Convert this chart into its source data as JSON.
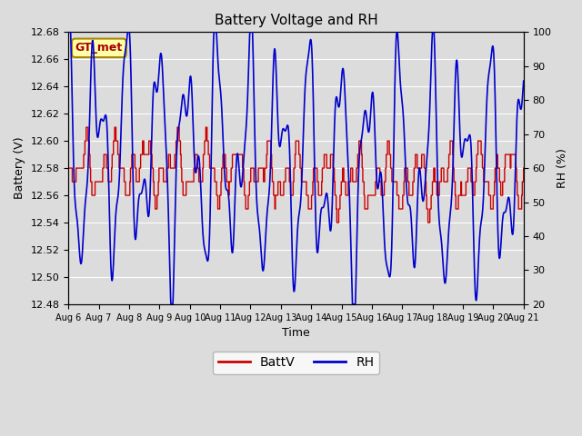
{
  "title": "Battery Voltage and RH",
  "xlabel": "Time",
  "ylabel_left": "Battery (V)",
  "ylabel_right": "RH (%)",
  "ylim_left": [
    12.48,
    12.68
  ],
  "ylim_right": [
    20,
    100
  ],
  "yticks_left": [
    12.48,
    12.5,
    12.52,
    12.54,
    12.56,
    12.58,
    12.6,
    12.62,
    12.64,
    12.66,
    12.68
  ],
  "yticks_right": [
    20,
    30,
    40,
    50,
    60,
    70,
    80,
    90,
    100
  ],
  "bg_color": "#dcdcdc",
  "annotation_text": "GT_met",
  "annotation_bg": "#ffffaa",
  "annotation_border": "#aa8800",
  "annotation_text_color": "#aa0000",
  "line_battv_color": "#cc0000",
  "line_rh_color": "#0000cc",
  "legend_labels": [
    "BattV",
    "RH"
  ],
  "legend_colors": [
    "#cc0000",
    "#0000cc"
  ],
  "xtick_labels": [
    "Aug 6",
    "Aug 7",
    "Aug 8",
    "Aug 9",
    "Aug 10",
    "Aug 11",
    "Aug 12",
    "Aug 13",
    "Aug 14",
    "Aug 15",
    "Aug 16",
    "Aug 17",
    "Aug 18",
    "Aug 19",
    "Aug 20",
    "Aug 21"
  ],
  "figsize": [
    6.4,
    4.8
  ],
  "dpi": 100
}
